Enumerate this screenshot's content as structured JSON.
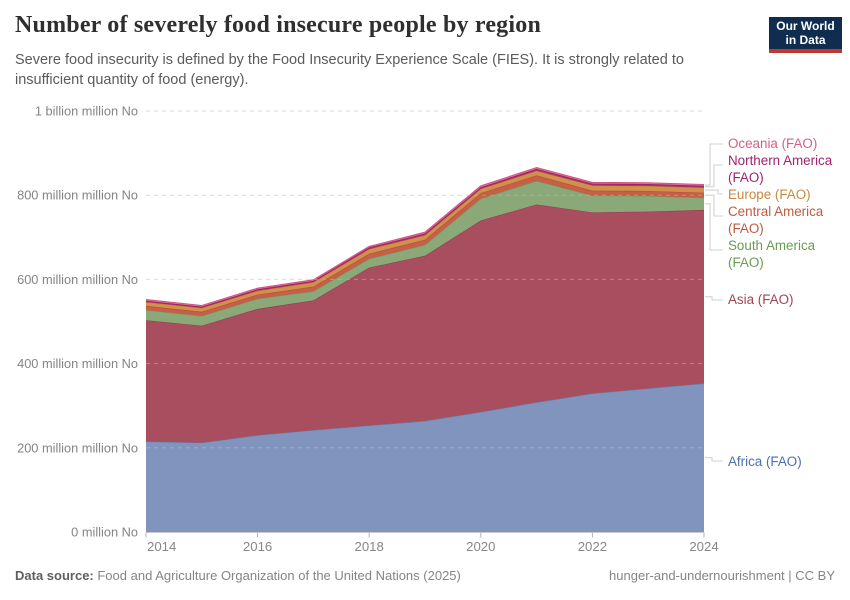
{
  "header": {
    "title": "Number of severely food insecure people by region",
    "subtitle": "Severe food insecurity is defined by the Food Insecurity Experience Scale (FIES). It is strongly related to insufficient quantity of food (energy).",
    "logo": {
      "line1": "Our World",
      "line2": "in Data",
      "bg_color": "#102d50",
      "accent_color": "#c0372d"
    }
  },
  "chart_data": {
    "type": "area",
    "stacked": true,
    "title": "Number of severely food insecure people by region",
    "xlabel": "",
    "ylabel": "",
    "xlim": [
      2014,
      2024
    ],
    "ylim": [
      0,
      1000
    ],
    "grid": "dashed-horizontal",
    "legend_position": "right",
    "x": [
      2014,
      2015,
      2016,
      2017,
      2018,
      2019,
      2020,
      2021,
      2022,
      2023,
      2024
    ],
    "xticks": [
      2014,
      2016,
      2018,
      2020,
      2022,
      2024
    ],
    "yticks": [
      {
        "value": 0,
        "label": "0 million No"
      },
      {
        "value": 200,
        "label": "200 million million No"
      },
      {
        "value": 400,
        "label": "400 million million No"
      },
      {
        "value": 600,
        "label": "600 million million No"
      },
      {
        "value": 800,
        "label": "800 million million No"
      },
      {
        "value": 1000,
        "label": "1 billion million No"
      }
    ],
    "unit": "million people (severely food insecure)",
    "series": [
      {
        "name": "Africa (FAO)",
        "fill": "#8094be",
        "stroke": "#6480ad",
        "values": [
          215,
          212,
          230,
          242,
          253,
          264,
          285,
          308,
          329,
          341,
          353
        ]
      },
      {
        "name": "Asia (FAO)",
        "fill": "#a84e5f",
        "stroke": "#97394c",
        "values": [
          288,
          278,
          300,
          308,
          375,
          392,
          455,
          470,
          430,
          420,
          412
        ]
      },
      {
        "name": "South America (FAO)",
        "fill": "#8aa878",
        "stroke": "#739960",
        "values": [
          24,
          23,
          24,
          22,
          21,
          26,
          52,
          56,
          40,
          37,
          29
        ]
      },
      {
        "name": "Central America (FAO)",
        "fill": "#c65f47",
        "stroke": "#b54c35",
        "values": [
          10,
          10,
          10,
          11,
          12,
          12,
          13,
          13,
          12,
          12,
          12
        ]
      },
      {
        "name": "Europe (FAO)",
        "fill": "#d1914b",
        "stroke": "#c07f36",
        "values": [
          9,
          9,
          9,
          10,
          11,
          11,
          10,
          11,
          12,
          12,
          12
        ]
      },
      {
        "name": "Northern America (FAO)",
        "fill": "#a53071",
        "stroke": "#8f1c5e",
        "values": [
          3.5,
          3.5,
          3.5,
          3.5,
          4,
          4,
          4,
          4.5,
          4.5,
          4.5,
          4.5
        ]
      },
      {
        "name": "Oceania (FAO)",
        "fill": "#e27a9c",
        "stroke": "#d45480",
        "values": [
          2.5,
          2.5,
          2.5,
          2.5,
          2.5,
          3,
          3,
          3,
          3,
          3,
          3
        ]
      }
    ]
  },
  "legend": {
    "items": [
      {
        "label": "Oceania (FAO)",
        "color": "#d4627f",
        "series": "Oceania (FAO)"
      },
      {
        "label": "Northern America (FAO)",
        "color": "#a1246b",
        "series": "Northern America (FAO)"
      },
      {
        "label": "Europe (FAO)",
        "color": "#c58a40",
        "series": "Europe (FAO)"
      },
      {
        "label": "Central America (FAO)",
        "color": "#c25940",
        "series": "Central America (FAO)"
      },
      {
        "label": "South America (FAO)",
        "color": "#6a9c54",
        "series": "South America (FAO)"
      },
      {
        "label": "Asia (FAO)",
        "color": "#a04455",
        "series": "Asia (FAO)"
      },
      {
        "label": "Africa (FAO)",
        "color": "#4c6fae",
        "series": "Africa (FAO)"
      }
    ]
  },
  "footer": {
    "source_label": "Data source:",
    "source_text": " Food and Agriculture Organization of the United Nations (2025)",
    "right_text": "hunger-and-undernourishment | CC BY"
  }
}
